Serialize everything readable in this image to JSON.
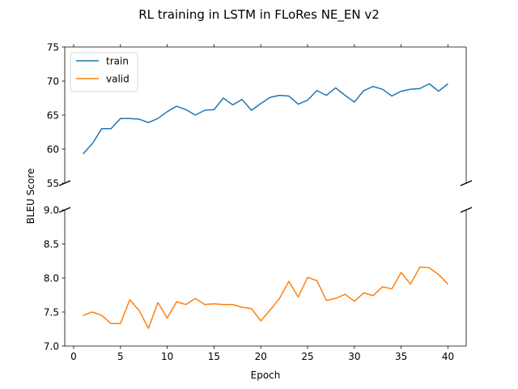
{
  "chart_data": {
    "type": "line",
    "title": "RL training in LSTM in FLoRes NE_EN v2",
    "xlabel": "Epoch",
    "ylabel": "BLEU Score",
    "broken_axis": true,
    "x": [
      1,
      2,
      3,
      4,
      5,
      6,
      7,
      8,
      9,
      10,
      11,
      12,
      13,
      14,
      15,
      16,
      17,
      18,
      19,
      20,
      21,
      22,
      23,
      24,
      25,
      26,
      27,
      28,
      29,
      30,
      31,
      32,
      33,
      34,
      35,
      36,
      37,
      38,
      39,
      40
    ],
    "xlim": [
      -0.95,
      41.95
    ],
    "xticks": [
      0,
      5,
      10,
      15,
      20,
      25,
      30,
      35,
      40
    ],
    "xtick_labels": [
      "0",
      "5",
      "10",
      "15",
      "20",
      "25",
      "30",
      "35",
      "40"
    ],
    "upper_panel": {
      "ylim": [
        55,
        75
      ],
      "yticks": [
        55,
        60,
        65,
        70,
        75
      ],
      "ytick_labels": [
        "55",
        "60",
        "65",
        "70",
        "75"
      ]
    },
    "lower_panel": {
      "ylim": [
        7.0,
        9.0
      ],
      "yticks": [
        7.0,
        7.5,
        8.0,
        8.5,
        9.0
      ],
      "ytick_labels": [
        "7.0",
        "7.5",
        "8.0",
        "8.5",
        "9.0"
      ]
    },
    "legend": {
      "position": "upper-left"
    },
    "series": [
      {
        "name": "train",
        "color": "#1f77b4",
        "panel": "upper",
        "values": [
          59.3,
          60.8,
          63.0,
          63.0,
          64.5,
          64.5,
          64.4,
          63.9,
          64.5,
          65.5,
          66.3,
          65.8,
          65.0,
          65.7,
          65.8,
          67.5,
          66.5,
          67.3,
          65.7,
          66.7,
          67.6,
          67.9,
          67.8,
          66.6,
          67.2,
          68.6,
          67.9,
          69.0,
          67.9,
          66.9,
          68.6,
          69.2,
          68.8,
          67.8,
          68.5,
          68.8,
          68.9,
          69.6,
          68.5,
          69.6
        ]
      },
      {
        "name": "valid",
        "color": "#ff7f0e",
        "panel": "lower",
        "values": [
          7.45,
          7.5,
          7.45,
          7.33,
          7.33,
          7.68,
          7.52,
          7.26,
          7.64,
          7.41,
          7.65,
          7.61,
          7.7,
          7.61,
          7.62,
          7.61,
          7.61,
          7.57,
          7.55,
          7.37,
          7.53,
          7.7,
          7.95,
          7.72,
          8.01,
          7.96,
          7.67,
          7.7,
          7.76,
          7.66,
          7.78,
          7.74,
          7.87,
          7.84,
          8.08,
          7.91,
          8.16,
          8.15,
          8.05,
          7.91
        ]
      }
    ]
  }
}
